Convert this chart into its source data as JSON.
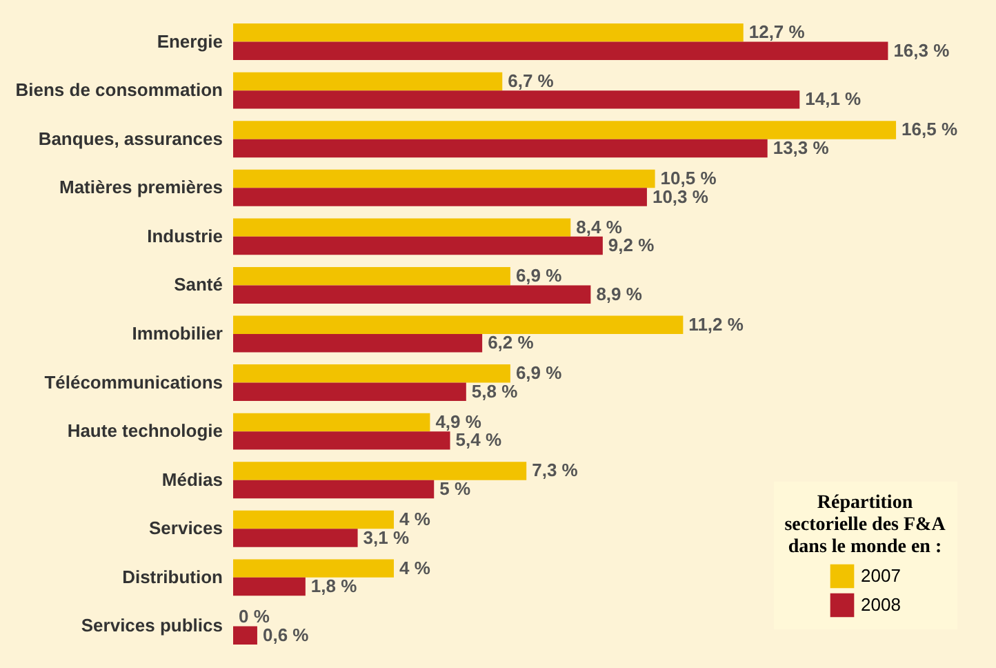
{
  "chart_data": {
    "type": "bar",
    "orientation": "horizontal",
    "legend_title": "Répartition sectorielle des F&A dans le monde en :",
    "legend": "bottom right",
    "grid": false,
    "categories": [
      "Energie",
      "Biens de consommation",
      "Banques, assurances",
      "Matières premières",
      "Industrie",
      "Santé",
      "Immobilier",
      "Télécommunications",
      "Haute technologie",
      "Médias",
      "Services",
      "Distribution",
      "Services publics"
    ],
    "series": [
      {
        "name": "2007",
        "color": "#f2c200",
        "values": [
          12.7,
          6.7,
          16.5,
          10.5,
          8.4,
          6.9,
          11.2,
          6.9,
          4.9,
          7.3,
          4,
          4,
          0
        ],
        "value_labels": [
          "12,7 %",
          "6,7 %",
          "16,5 %",
          "10,5 %",
          "8,4 %",
          "6,9 %",
          "11,2 %",
          "6,9 %",
          "4,9 %",
          "7,3 %",
          "4 %",
          "4 %",
          "0 %"
        ]
      },
      {
        "name": "2008",
        "color": "#b51c2c",
        "values": [
          16.3,
          14.1,
          13.3,
          10.3,
          9.2,
          8.9,
          6.2,
          5.8,
          5.4,
          5,
          3.1,
          1.8,
          0.6
        ],
        "value_labels": [
          "16,3 %",
          "14,1 %",
          "13,3 %",
          "10,3 %",
          "9,2 %",
          "8,9 %",
          "6,2 %",
          "5,8 %",
          "5,4 %",
          "5 %",
          "3,1 %",
          "1,8 %",
          "0,6 %"
        ]
      }
    ]
  }
}
